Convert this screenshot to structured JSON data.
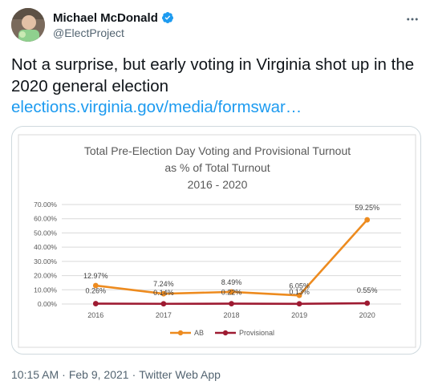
{
  "author": {
    "display_name": "Michael McDonald",
    "handle": "@ElectProject",
    "verified": true,
    "verified_color": "#1d9bf0"
  },
  "tweet": {
    "text": "Not a surprise, but early voting in Virginia shot up in the 2020 general election",
    "link_text": "elections.virginia.gov/media/formswar…",
    "link_color": "#1d9bf0"
  },
  "footer": {
    "time": "10:15 AM",
    "separator": "·",
    "date": "Feb 9, 2021",
    "source": "Twitter Web App"
  },
  "icons": {
    "more": "more-horizontal-icon",
    "verified": "verified-badge-icon"
  },
  "chart_data": {
    "type": "line",
    "title": "Total Pre-Election Day Voting and Provisional Turnout",
    "subtitle": "as % of Total Turnout",
    "subtitle2": "2016 - 2020",
    "xlabel": "",
    "ylabel": "",
    "categories": [
      "2016",
      "2017",
      "2018",
      "2019",
      "2020"
    ],
    "ylim": [
      0,
      70
    ],
    "yticks": [
      "0.00%",
      "10.00%",
      "20.00%",
      "30.00%",
      "40.00%",
      "50.00%",
      "60.00%",
      "70.00%"
    ],
    "grid": true,
    "legend_position": "bottom-center",
    "series": [
      {
        "name": "AB",
        "color": "#ed8b1f",
        "values": [
          12.97,
          7.24,
          8.49,
          6.05,
          59.25
        ],
        "labels": [
          "12.97%",
          "7.24%",
          "8.49%",
          "6.05%",
          "59.25%"
        ]
      },
      {
        "name": "Provisional",
        "color": "#9e1b32",
        "values": [
          0.26,
          0.14,
          0.22,
          0.13,
          0.55
        ],
        "labels": [
          "0.26%",
          "0.14%",
          "0.22%",
          "0.13%",
          "0.55%"
        ]
      }
    ]
  }
}
